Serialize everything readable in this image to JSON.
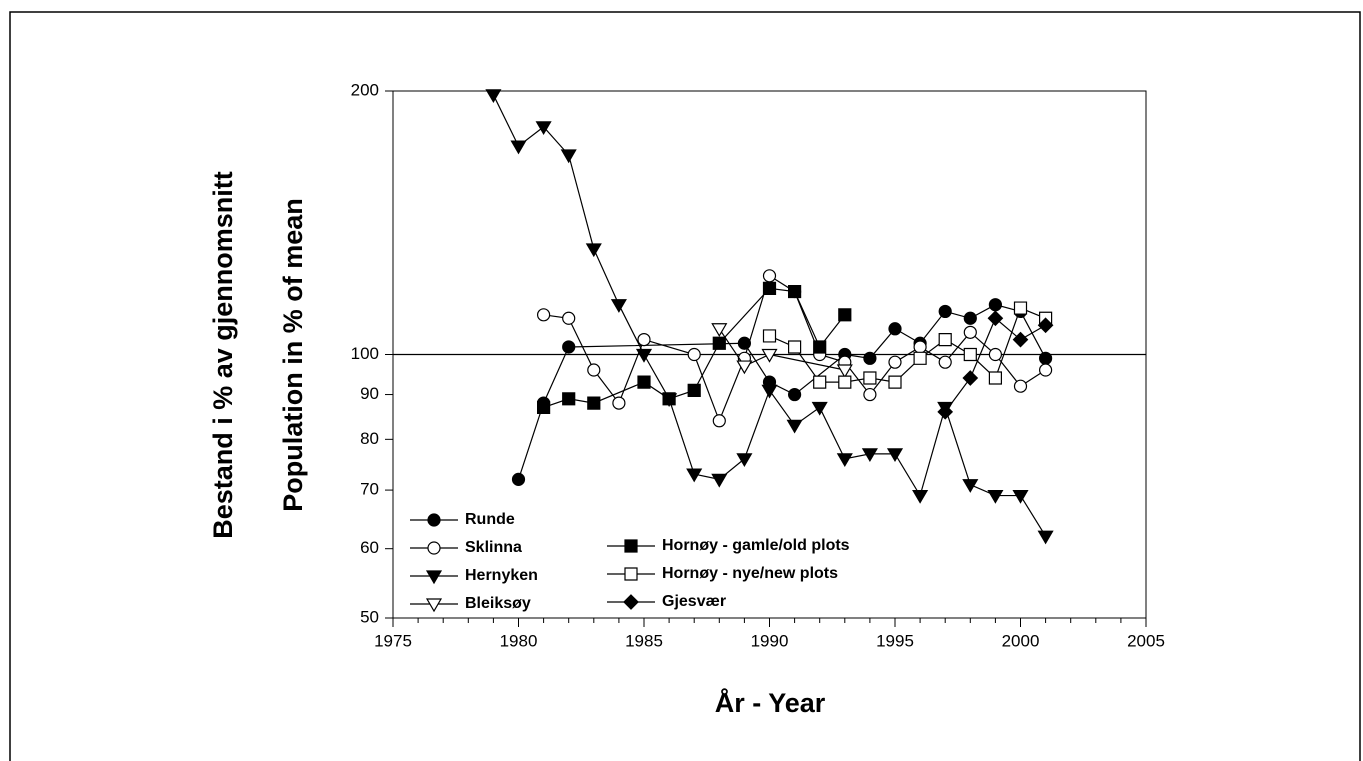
{
  "chart_data": {
    "type": "line",
    "xlabel": "År  -  Year",
    "ylabel": [
      "Bestand  i  %  av  gjennomsnitt",
      "Population  in  %  of  mean"
    ],
    "xlim": [
      1975,
      2005
    ],
    "xticks": [
      1975,
      1980,
      1985,
      1990,
      1995,
      2000,
      2005
    ],
    "ylim": [
      50,
      200
    ],
    "yticks": [
      50,
      60,
      70,
      80,
      90,
      100,
      200
    ],
    "log_scale_y": true,
    "reference_line": 100,
    "legend": "lower left",
    "series": [
      {
        "name": "Runde",
        "marker": "circle",
        "filled": true,
        "color": "#000000",
        "x": [
          1980,
          1981,
          1982,
          1989,
          1990,
          1991,
          1993,
          1994,
          1995,
          1996,
          1997,
          1998,
          1999,
          2000,
          2001
        ],
        "values": [
          72,
          88,
          102,
          103,
          93,
          90,
          100,
          99,
          107,
          103,
          112,
          110,
          114,
          112,
          99
        ]
      },
      {
        "name": "Sklinna",
        "marker": "circle",
        "filled": false,
        "color": "#000000",
        "x": [
          1981,
          1982,
          1983,
          1984,
          1985,
          1987,
          1988,
          1989,
          1990,
          1991,
          1992,
          1993,
          1994,
          1995,
          1996,
          1997,
          1998,
          1999,
          2000,
          2001
        ],
        "values": [
          111,
          110,
          96,
          88,
          104,
          100,
          84,
          99,
          123,
          118,
          100,
          98,
          90,
          98,
          102,
          98,
          106,
          100,
          92,
          96
        ]
      },
      {
        "name": "Hernyken",
        "marker": "triangle-down",
        "filled": true,
        "color": "#000000",
        "x": [
          1979,
          1980,
          1981,
          1982,
          1983,
          1984,
          1985,
          1986,
          1987,
          1988,
          1989,
          1990,
          1991,
          1992,
          1993,
          1994,
          1995,
          1996,
          1997,
          1998,
          1999,
          2000,
          2001
        ],
        "values": [
          198,
          173,
          182,
          169,
          132,
          114,
          100,
          89,
          73,
          72,
          76,
          91,
          83,
          87,
          76,
          77,
          77,
          69,
          87,
          71,
          69,
          69,
          62
        ]
      },
      {
        "name": "Bleiksøy",
        "marker": "triangle-down",
        "filled": false,
        "color": "#000000",
        "x": [
          1988,
          1989,
          1990,
          1993
        ],
        "values": [
          107,
          97,
          100,
          96
        ]
      },
      {
        "name": "Hornøy - gamle/old plots",
        "marker": "square",
        "filled": true,
        "color": "#000000",
        "x": [
          1981,
          1982,
          1983,
          1985,
          1986,
          1987,
          1988,
          1990,
          1991,
          1992,
          1993
        ],
        "values": [
          87,
          89,
          88,
          93,
          89,
          91,
          103,
          119,
          118,
          102,
          111
        ]
      },
      {
        "name": "Hornøy - nye/new plots",
        "marker": "square",
        "filled": false,
        "color": "#000000",
        "x": [
          1990,
          1991,
          1992,
          1993,
          1994,
          1995,
          1996,
          1997,
          1998,
          1999,
          2000,
          2001
        ],
        "values": [
          105,
          102,
          93,
          93,
          94,
          93,
          99,
          104,
          100,
          94,
          113,
          110
        ]
      },
      {
        "name": "Gjesvær",
        "marker": "diamond",
        "filled": true,
        "color": "#000000",
        "x": [
          1997,
          1998,
          1999,
          2000,
          2001
        ],
        "values": [
          86,
          94,
          110,
          104,
          108
        ]
      }
    ]
  }
}
